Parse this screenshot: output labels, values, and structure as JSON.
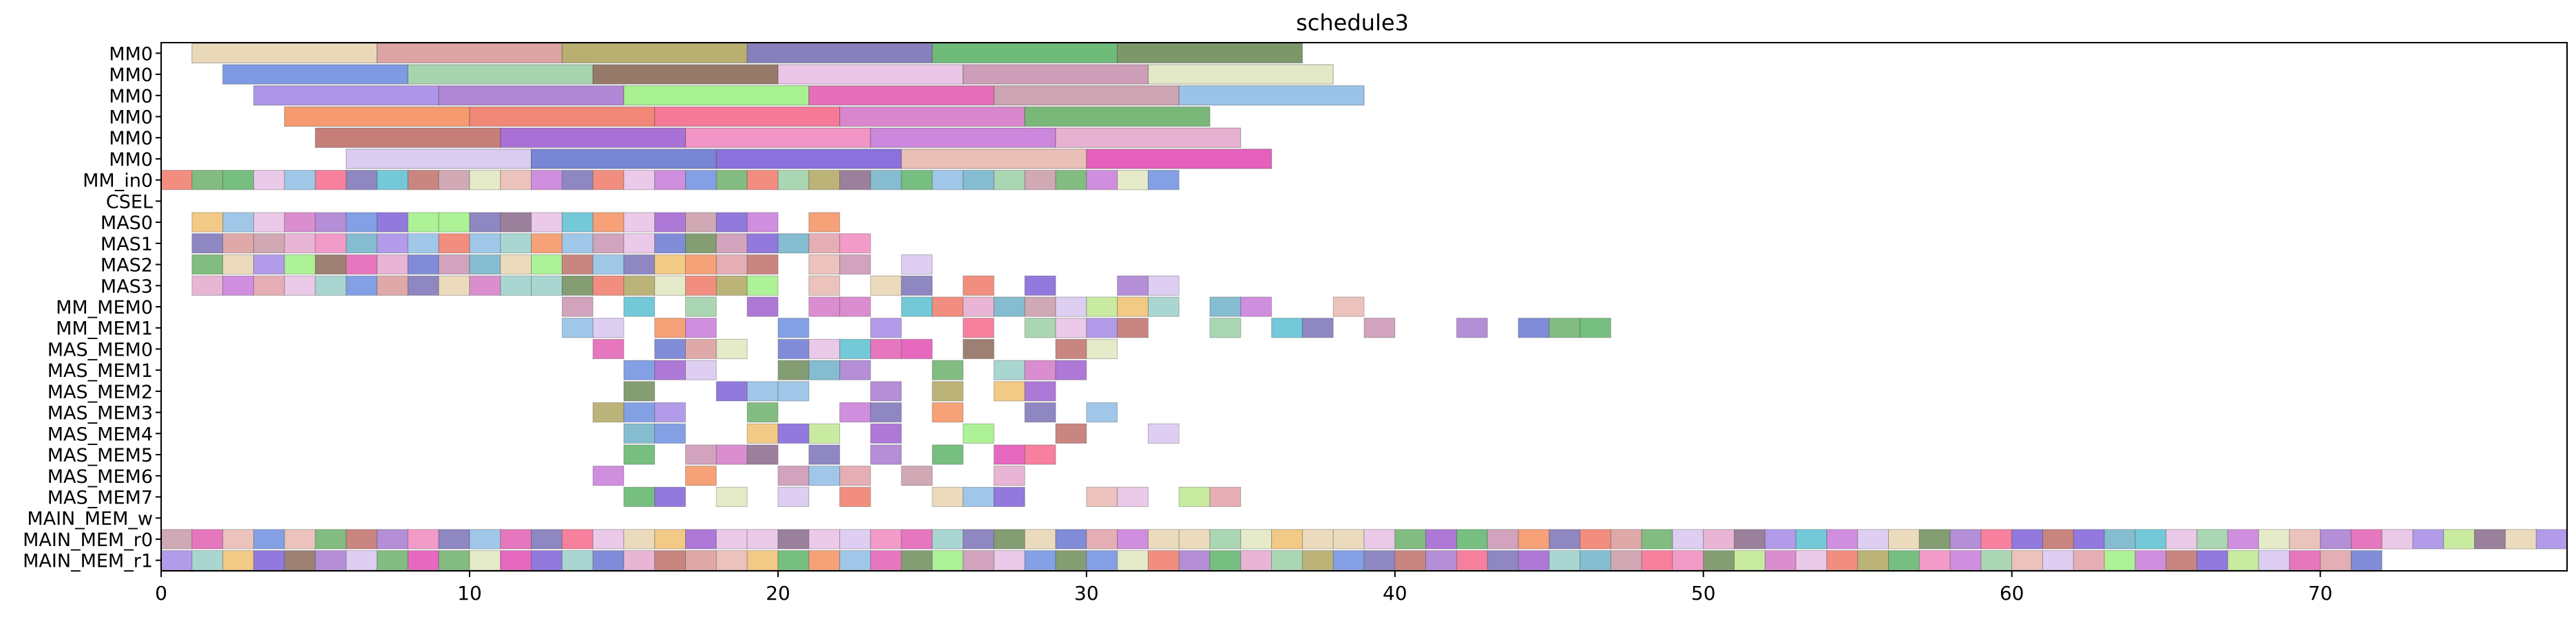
{
  "chart_data": {
    "type": "gantt",
    "title": "schedule3",
    "xlabel": "",
    "ylabel": "",
    "xlim": [
      0,
      78
    ],
    "xticks": [
      0,
      10,
      20,
      30,
      40,
      50,
      60,
      70
    ],
    "grid": false,
    "rows": [
      "MM0",
      "MM0",
      "MM0",
      "MM0",
      "MM0",
      "MM0",
      "MM_in0",
      "CSEL",
      "MAS0",
      "MAS1",
      "MAS2",
      "MAS3",
      "MM_MEM0",
      "MM_MEM1",
      "MAS_MEM0",
      "MAS_MEM1",
      "MAS_MEM2",
      "MAS_MEM3",
      "MAS_MEM4",
      "MAS_MEM5",
      "MAS_MEM6",
      "MAS_MEM7",
      "MAIN_MEM_w",
      "MAIN_MEM_r0",
      "MAIN_MEM_r1"
    ],
    "row_bars": [
      {
        "start": 1,
        "dur": 6,
        "n": 6
      },
      {
        "start": 2,
        "dur": 6,
        "n": 6
      },
      {
        "start": 3,
        "dur": 6,
        "n": 6
      },
      {
        "start": 4,
        "dur": 6,
        "n": 6
      },
      {
        "start": 5,
        "dur": 6,
        "n": 5
      },
      {
        "start": 6,
        "dur": 6,
        "n": 5
      },
      {
        "start": 0,
        "dur": 1,
        "n": 33
      },
      {
        "start": 0,
        "dur": 1,
        "n": 0
      },
      {
        "start": 1,
        "dur": 1,
        "n": 20
      },
      {
        "start": 1,
        "dur": 1,
        "n": 22
      },
      {
        "start": 1,
        "dur": 1,
        "n": 22
      },
      {
        "start": 1,
        "dur": 1,
        "n": 26
      },
      {
        "start": 13,
        "dur": 1,
        "n": 18
      },
      {
        "start": 13,
        "dur": 1,
        "n": 19
      },
      {
        "start": 13,
        "dur": 1,
        "n": 12
      },
      {
        "start": 14,
        "dur": 1,
        "n": 10
      },
      {
        "start": 14,
        "dur": 1,
        "n": 8
      },
      {
        "start": 14,
        "dur": 1,
        "n": 9
      },
      {
        "start": 15,
        "dur": 1,
        "n": 9
      },
      {
        "start": 14,
        "dur": 1,
        "n": 9
      },
      {
        "start": 14,
        "dur": 1,
        "n": 7
      },
      {
        "start": 13,
        "dur": 1,
        "n": 12
      },
      {
        "start": 0,
        "dur": 1,
        "n": 0
      },
      {
        "start": 0,
        "dur": 1,
        "n": 78
      },
      {
        "start": 0,
        "dur": 1,
        "n": 72
      }
    ],
    "bars": [
      {
        "row": 0,
        "start": 1,
        "end": 7,
        "color": "#e8d5b0"
      },
      {
        "row": 0,
        "start": 7,
        "end": 13,
        "color": "#d99a9a"
      },
      {
        "row": 0,
        "start": 13,
        "end": 19,
        "color": "#b0a660"
      },
      {
        "row": 0,
        "start": 19,
        "end": 25,
        "color": "#7a72b6"
      },
      {
        "row": 0,
        "start": 25,
        "end": 31,
        "color": "#5fb46a"
      },
      {
        "row": 0,
        "start": 31,
        "end": 37,
        "color": "#6f8c5a"
      },
      {
        "row": 1,
        "start": 2,
        "end": 8,
        "color": "#6f8fe0"
      },
      {
        "row": 1,
        "start": 8,
        "end": 14,
        "color": "#9ccfa6"
      },
      {
        "row": 1,
        "start": 14,
        "end": 20,
        "color": "#8c6a5a"
      },
      {
        "row": 1,
        "start": 20,
        "end": 26,
        "color": "#e8c0e4"
      },
      {
        "row": 1,
        "start": 26,
        "end": 32,
        "color": "#c993b0"
      },
      {
        "row": 1,
        "start": 32,
        "end": 38,
        "color": "#e0e6c0"
      },
      {
        "row": 2,
        "start": 3,
        "end": 9,
        "color": "#a58ae4"
      },
      {
        "row": 2,
        "start": 9,
        "end": 15,
        "color": "#a77ad0"
      },
      {
        "row": 2,
        "start": 15,
        "end": 21,
        "color": "#9ff084"
      },
      {
        "row": 2,
        "start": 21,
        "end": 27,
        "color": "#e25fb3"
      },
      {
        "row": 2,
        "start": 27,
        "end": 33,
        "color": "#c89aa8"
      },
      {
        "row": 2,
        "start": 33,
        "end": 39,
        "color": "#8fbde4"
      },
      {
        "row": 3,
        "start": 4,
        "end": 10,
        "color": "#f59060"
      },
      {
        "row": 3,
        "start": 10,
        "end": 16,
        "color": "#f07a68"
      },
      {
        "row": 3,
        "start": 16,
        "end": 22,
        "color": "#f56a8c"
      },
      {
        "row": 3,
        "start": 22,
        "end": 28,
        "color": "#d47ac8"
      },
      {
        "row": 3,
        "start": 28,
        "end": 34,
        "color": "#6cb06a"
      },
      {
        "row": 4,
        "start": 5,
        "end": 11,
        "color": "#c0706a"
      },
      {
        "row": 4,
        "start": 11,
        "end": 17,
        "color": "#a060d0"
      },
      {
        "row": 4,
        "start": 17,
        "end": 23,
        "color": "#f08ac0"
      },
      {
        "row": 4,
        "start": 23,
        "end": 29,
        "color": "#c87ad8"
      },
      {
        "row": 4,
        "start": 29,
        "end": 35,
        "color": "#e4a8cc"
      },
      {
        "row": 5,
        "start": 6,
        "end": 12,
        "color": "#d7c6f0"
      },
      {
        "row": 5,
        "start": 12,
        "end": 18,
        "color": "#6a78d0"
      },
      {
        "row": 5,
        "start": 18,
        "end": 24,
        "color": "#7e62d8"
      },
      {
        "row": 5,
        "start": 24,
        "end": 30,
        "color": "#e8b8b0"
      },
      {
        "row": 5,
        "start": 30,
        "end": 36,
        "color": "#e24fb4"
      },
      {
        "row": 22,
        "start": 0,
        "end": 0,
        "color": "#ffffff"
      }
    ]
  }
}
